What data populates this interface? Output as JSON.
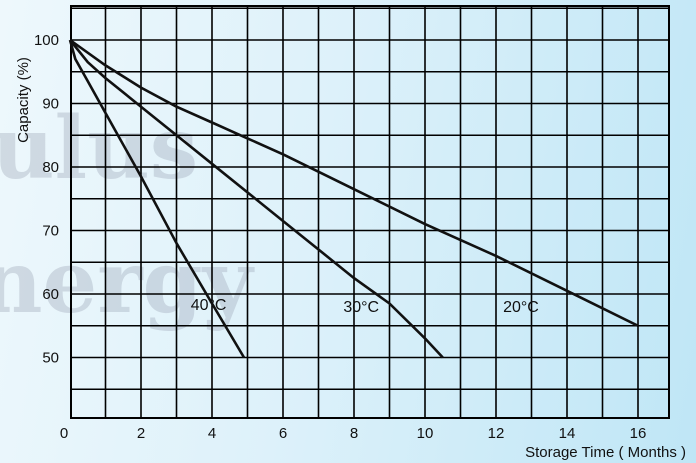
{
  "watermark": {
    "line1": "ulus",
    "line2": "nergy"
  },
  "chart_data": {
    "type": "line",
    "title": "",
    "xlabel": "Storage Time ( Months )",
    "ylabel": "Capacity (%)",
    "xlim": [
      0,
      16.5
    ],
    "ylim": [
      45,
      105
    ],
    "grid": true,
    "x_ticks": [
      "0",
      "2",
      "4",
      "6",
      "8",
      "10",
      "12",
      "14",
      "16"
    ],
    "y_ticks": [
      "50",
      "60",
      "70",
      "80",
      "90",
      "100"
    ],
    "series": [
      {
        "name": "40°C",
        "x": [
          0,
          0.15,
          0.5,
          1.0,
          2.0,
          3.0,
          4.0,
          4.9
        ],
        "y": [
          100,
          97,
          93.5,
          88.5,
          78.5,
          68,
          58.5,
          50
        ]
      },
      {
        "name": "30°C",
        "x": [
          0,
          0.5,
          1.0,
          2.0,
          3.0,
          4.0,
          5.0,
          6.0,
          7.0,
          8.0,
          9.0,
          10.0,
          10.5
        ],
        "y": [
          100,
          96.5,
          94,
          89.5,
          85,
          80.5,
          76,
          71.5,
          67,
          62.5,
          58.5,
          53,
          50
        ]
      },
      {
        "name": "20°C",
        "x": [
          0,
          1.0,
          2.0,
          3.0,
          4.0,
          5.0,
          6.0,
          8.0,
          10.0,
          12.0,
          14.0,
          16.0
        ],
        "y": [
          100,
          96,
          92.5,
          89.5,
          87,
          84.5,
          82,
          76.5,
          71,
          66,
          60.5,
          55
        ]
      }
    ],
    "series_labels": [
      {
        "name": "40°C",
        "x": 3.4,
        "y": 57.5
      },
      {
        "name": "30°C",
        "x": 7.7,
        "y": 57.2
      },
      {
        "name": "20°C",
        "x": 12.2,
        "y": 57.2
      }
    ]
  }
}
